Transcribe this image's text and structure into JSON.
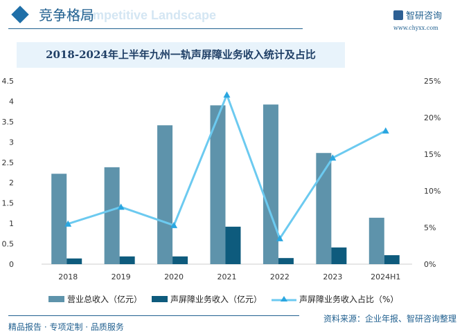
{
  "header": {
    "title": "竞争格局",
    "subtitle_en": "Competitive Landscape",
    "logo": "智研咨询",
    "site": "www.chyxx.com"
  },
  "footer": {
    "left": "精品报告 · 专项定制 · 品质服务",
    "source": "资料来源：企业年报、智研咨询整理"
  },
  "chart_data": {
    "type": "bar+line",
    "title": "2018-2024年上半年九州一轨声屏障业务收入统计及占比",
    "categories": [
      "2018",
      "2019",
      "2020",
      "2021",
      "2022",
      "2023",
      "2024H1"
    ],
    "y_left": {
      "range": [
        0,
        4.5
      ],
      "ticks": [
        "0",
        "0.5",
        "1",
        "1.5",
        "2",
        "2.5",
        "3",
        "3.5",
        "4",
        "4.5"
      ]
    },
    "y_right": {
      "range": [
        0,
        25
      ],
      "ticks": [
        "0%",
        "5%",
        "10%",
        "15%",
        "20%",
        "25%"
      ]
    },
    "series": [
      {
        "name": "营业总收入（亿元）",
        "type": "bar",
        "axis": "left",
        "color": "#5e93ab",
        "values": [
          2.22,
          2.38,
          3.41,
          3.9,
          3.92,
          2.73,
          1.14
        ]
      },
      {
        "name": "声屏障业务收入（亿元）",
        "type": "bar",
        "axis": "left",
        "color": "#0e5b7d",
        "values": [
          0.14,
          0.19,
          0.19,
          0.92,
          0.15,
          0.41,
          0.22
        ]
      },
      {
        "name": "声屏障业务收入占比（%）",
        "type": "line",
        "axis": "right",
        "color": "#6ccaf0",
        "values": [
          5.5,
          7.8,
          5.3,
          23.1,
          3.5,
          14.5,
          18.2
        ]
      }
    ],
    "legend": "bottom",
    "grid": false
  }
}
